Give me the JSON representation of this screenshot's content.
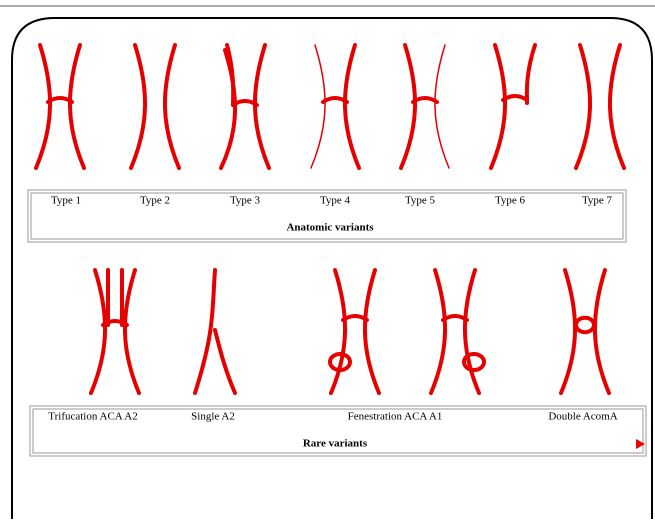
{
  "anatomic": {
    "labels": [
      "Type 1",
      "Type 2",
      "Type 3",
      "Type 4",
      "Type 5",
      "Type 6",
      "Type 7"
    ],
    "caption": "Anatomic variants"
  },
  "rare": {
    "labels": [
      "Trifucation ACA A2",
      "Single A2",
      "Fenestration ACA A1",
      "Double AcomA"
    ],
    "caption": "Rare variants"
  }
}
